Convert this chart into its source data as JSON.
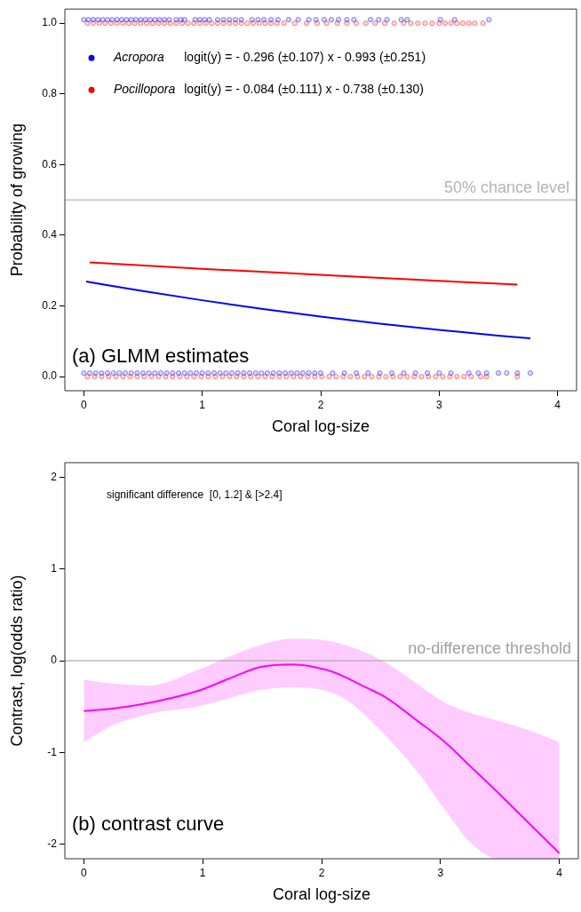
{
  "chart_data": [
    {
      "type": "line",
      "title": "(a) GLMM estimates",
      "xlabel": "Coral log-size",
      "ylabel": "Probability of growing",
      "xlim": [
        -0.16,
        4.16
      ],
      "xticks": [
        0,
        1,
        2,
        3,
        4
      ],
      "ylim": [
        -0.04,
        1.04
      ],
      "yticks": [
        {
          "value": 0,
          "label": "0.0"
        },
        0.2,
        0.4,
        0.6,
        0.8,
        {
          "value": 1,
          "label": "1.0"
        }
      ],
      "grid": false,
      "legend": "top left",
      "annotations": [
        "logit(y) = - 0.296 (±0.107) x - 0.993 (±0.251)",
        "logit(y) = - 0.084 (±0.111) x - 0.738 (±0.130)"
      ],
      "ref_lines": [
        {
          "axis": "y",
          "value": 0.5,
          "label": "50% chance level",
          "color": "#b4b4b4"
        }
      ],
      "series": [
        {
          "name": "Acropora",
          "type": "line",
          "color": "#0000ff",
          "x": [
            0.02,
            0.5,
            1,
            1.5,
            2,
            2.5,
            3,
            3.5,
            3.77
          ],
          "values": [
            0.269,
            0.242,
            0.216,
            0.192,
            0.17,
            0.15,
            0.132,
            0.116,
            0.108
          ]
        },
        {
          "name": "Pocillopora",
          "type": "line",
          "color": "#ff0000",
          "x": [
            0.05,
            1,
            2,
            3,
            3.66
          ],
          "values": [
            0.323,
            0.305,
            0.288,
            0.271,
            0.26
          ]
        },
        {
          "type": "scatter",
          "marker": "circle",
          "color": "#0000ff",
          "x": [
            0.0,
            0.04,
            0.08,
            0.12,
            0.16,
            0.2,
            0.24,
            0.28,
            0.32,
            0.36,
            0.4,
            0.44,
            0.48,
            0.52,
            0.56,
            0.6,
            0.64,
            0.68,
            0.72,
            0.78,
            0.82,
            0.85,
            0.94,
            0.98,
            1.02,
            1.06,
            1.13,
            1.18,
            1.23,
            1.28,
            1.33,
            1.42,
            1.47,
            1.52,
            1.58,
            1.64,
            1.73,
            1.81,
            1.9,
            1.96,
            2.03,
            2.09,
            2.15,
            2.22,
            2.28,
            2.42,
            2.49,
            2.56,
            2.68,
            2.73,
            3.01,
            3.13,
            3.42
          ],
          "values": [
            1.01,
            1.01,
            1.01,
            1.01,
            1.01,
            1.01,
            1.01,
            1.01,
            1.01,
            1.01,
            1.01,
            1.01,
            1.01,
            1.01,
            1.01,
            1.01,
            1.01,
            1.01,
            1.01,
            1.01,
            1.01,
            1.01,
            1.01,
            1.01,
            1.01,
            1.01,
            1.01,
            1.01,
            1.01,
            1.01,
            1.01,
            1.01,
            1.01,
            1.01,
            1.01,
            1.01,
            1.01,
            1.01,
            1.01,
            1.01,
            1.01,
            1.01,
            1.01,
            1.01,
            1.01,
            1.01,
            1.01,
            1.01,
            1.01,
            1.01,
            1.01,
            1.01,
            1.01
          ]
        },
        {
          "type": "scatter",
          "marker": "circle",
          "color": "#ff0000",
          "x": [
            0.03,
            0.08,
            0.13,
            0.18,
            0.23,
            0.28,
            0.33,
            0.38,
            0.43,
            0.48,
            0.53,
            0.58,
            0.63,
            0.68,
            0.73,
            0.78,
            0.83,
            0.88,
            0.93,
            0.98,
            1.03,
            1.08,
            1.13,
            1.18,
            1.23,
            1.28,
            1.33,
            1.38,
            1.43,
            1.48,
            1.53,
            1.58,
            1.63,
            1.69,
            1.78,
            1.88,
            1.97,
            2.05,
            2.14,
            2.22,
            2.3,
            2.38,
            2.46,
            2.54,
            2.62,
            2.7,
            2.76,
            2.82,
            2.88,
            2.94,
            3.0,
            3.05,
            3.1,
            3.15,
            3.2,
            3.25,
            3.3,
            3.37
          ],
          "values": [
            1,
            1,
            1,
            1,
            1,
            1,
            1,
            1,
            1,
            1,
            1,
            1,
            1,
            1,
            1,
            1,
            1,
            1,
            1,
            1,
            1,
            1,
            1,
            1,
            1,
            1,
            1,
            1,
            1,
            1,
            1,
            1,
            1,
            1,
            1,
            1,
            1,
            1,
            1,
            1,
            1,
            1,
            1,
            1,
            1,
            1,
            1,
            1,
            1,
            1,
            1,
            1,
            1,
            1,
            1,
            1,
            1,
            1
          ]
        },
        {
          "type": "scatter",
          "marker": "circle",
          "color": "#0000ff",
          "x": [
            0.0,
            0.05,
            0.1,
            0.15,
            0.2,
            0.25,
            0.3,
            0.35,
            0.4,
            0.45,
            0.5,
            0.55,
            0.6,
            0.65,
            0.7,
            0.75,
            0.8,
            0.85,
            0.9,
            0.95,
            1.0,
            1.05,
            1.1,
            1.15,
            1.2,
            1.25,
            1.3,
            1.35,
            1.4,
            1.45,
            1.5,
            1.55,
            1.6,
            1.65,
            1.7,
            1.75,
            1.8,
            1.85,
            1.9,
            1.95,
            2.0,
            2.1,
            2.2,
            2.3,
            2.4,
            2.5,
            2.6,
            2.7,
            2.8,
            2.9,
            3.0,
            3.1,
            3.25,
            3.33,
            3.4,
            3.5,
            3.57,
            3.66,
            3.77
          ],
          "values": [
            0.01,
            0.01,
            0.01,
            0.01,
            0.01,
            0.01,
            0.01,
            0.01,
            0.01,
            0.01,
            0.01,
            0.01,
            0.01,
            0.01,
            0.01,
            0.01,
            0.01,
            0.01,
            0.01,
            0.01,
            0.01,
            0.01,
            0.01,
            0.01,
            0.01,
            0.01,
            0.01,
            0.01,
            0.01,
            0.01,
            0.01,
            0.01,
            0.01,
            0.01,
            0.01,
            0.01,
            0.01,
            0.01,
            0.01,
            0.01,
            0.01,
            0.01,
            0.01,
            0.01,
            0.01,
            0.01,
            0.01,
            0.01,
            0.01,
            0.01,
            0.01,
            0.01,
            0.01,
            0.01,
            0.01,
            0.01,
            0.01,
            0.01,
            0.01
          ]
        },
        {
          "type": "scatter",
          "marker": "circle",
          "color": "#ff0000",
          "x": [
            0.03,
            0.09,
            0.15,
            0.21,
            0.27,
            0.33,
            0.39,
            0.45,
            0.51,
            0.57,
            0.63,
            0.69,
            0.75,
            0.81,
            0.87,
            0.93,
            0.99,
            1.05,
            1.11,
            1.17,
            1.23,
            1.29,
            1.35,
            1.41,
            1.47,
            1.53,
            1.59,
            1.65,
            1.71,
            1.77,
            1.83,
            1.89,
            1.95,
            2.01,
            2.07,
            2.13,
            2.19,
            2.25,
            2.31,
            2.37,
            2.43,
            2.49,
            2.55,
            2.61,
            2.67,
            2.73,
            2.79,
            2.85,
            2.91,
            2.97,
            3.03,
            3.09,
            3.15,
            3.21,
            3.27,
            3.35,
            3.4,
            3.66
          ],
          "values": [
            0,
            0,
            0,
            0,
            0,
            0,
            0,
            0,
            0,
            0,
            0,
            0,
            0,
            0,
            0,
            0,
            0,
            0,
            0,
            0,
            0,
            0,
            0,
            0,
            0,
            0,
            0,
            0,
            0,
            0,
            0,
            0,
            0,
            0,
            0,
            0,
            0,
            0,
            0,
            0,
            0,
            0,
            0,
            0,
            0,
            0,
            0,
            0,
            0,
            0,
            0,
            0,
            0,
            0,
            0,
            0,
            0,
            0
          ]
        }
      ]
    },
    {
      "type": "line",
      "title": "(b) contrast curve",
      "xlabel": "Coral log-size",
      "ylabel": "Contrast, log(odds ratio)",
      "xlim": [
        -0.16,
        4.16
      ],
      "xticks": [
        0,
        1,
        2,
        3,
        4
      ],
      "ylim": [
        -2.16,
        2.16
      ],
      "yticks": [
        -2,
        -1,
        0,
        1,
        2
      ],
      "grid": false,
      "annotations": [
        "significant difference  [0, 1.2] & [>2.4]"
      ],
      "ref_lines": [
        {
          "axis": "y",
          "value": 0,
          "label": "no-difference threshold",
          "color": "#a0a0a0"
        }
      ],
      "series": [
        {
          "type": "line",
          "color": "#ff00ff",
          "x": [
            0,
            0.25,
            0.55,
            0.96,
            1.25,
            1.48,
            1.76,
            2.04,
            2.2,
            2.37,
            2.54,
            2.8,
            3.04,
            3.25,
            3.5,
            3.75,
            4.0
          ],
          "values": [
            -0.55,
            -0.52,
            -0.46,
            -0.33,
            -0.18,
            -0.07,
            -0.04,
            -0.1,
            -0.18,
            -0.29,
            -0.4,
            -0.65,
            -0.89,
            -1.15,
            -1.46,
            -1.78,
            -2.1
          ],
          "upper": [
            -0.21,
            -0.25,
            -0.27,
            -0.1,
            0.06,
            0.17,
            0.24,
            0.22,
            0.17,
            0.09,
            -0.02,
            -0.25,
            -0.46,
            -0.57,
            -0.66,
            -0.76,
            -0.89
          ],
          "lower": [
            -0.89,
            -0.7,
            -0.58,
            -0.5,
            -0.4,
            -0.32,
            -0.29,
            -0.33,
            -0.42,
            -0.6,
            -0.82,
            -1.2,
            -1.63,
            -1.98,
            -2.16,
            -2.16,
            -2.16
          ]
        }
      ]
    }
  ]
}
